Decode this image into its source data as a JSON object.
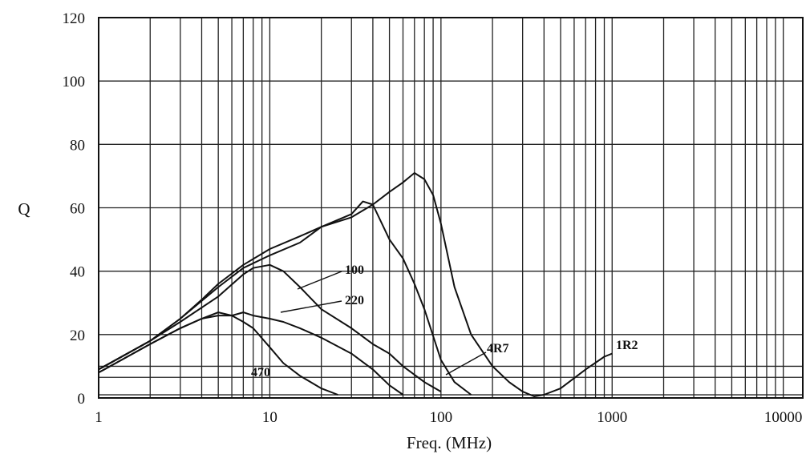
{
  "chart_data": {
    "type": "line",
    "title": "",
    "xlabel": "Freq. (MHz)",
    "ylabel": "Q",
    "x_scale": "log",
    "xlim": [
      1,
      13000
    ],
    "ylim": [
      0,
      120
    ],
    "grid": true,
    "x_tick_labels": [
      "1",
      "10",
      "100",
      "1000",
      "10000"
    ],
    "x_tick_values": [
      1,
      10,
      100,
      1000,
      10000
    ],
    "y_tick_labels": [
      "0",
      "20",
      "40",
      "60",
      "80",
      "100",
      "120"
    ],
    "y_tick_values": [
      0,
      20,
      40,
      60,
      80,
      100,
      120
    ],
    "extra_y_gridlines": [
      1,
      6.5,
      10
    ],
    "series": [
      {
        "name": "1R2",
        "x": [
          1,
          2,
          3,
          4,
          5,
          7,
          10,
          15,
          20,
          30,
          40,
          50,
          60,
          70,
          80,
          90,
          100,
          120,
          150,
          200,
          250,
          300,
          350,
          400,
          500,
          700,
          900,
          1000
        ],
        "y": [
          9,
          18,
          25,
          31,
          36,
          42,
          47,
          51,
          54,
          57,
          61,
          65,
          68,
          71,
          69,
          64,
          55,
          35,
          20,
          10,
          5,
          2,
          0.5,
          1,
          3,
          9,
          13,
          14
        ]
      },
      {
        "name": "4R7",
        "x": [
          1,
          2,
          3,
          5,
          7,
          10,
          15,
          20,
          30,
          35,
          40,
          50,
          60,
          70,
          80,
          100,
          120,
          150
        ],
        "y": [
          9,
          18,
          25,
          35,
          41,
          45,
          49,
          54,
          58,
          62,
          61,
          50,
          44,
          36,
          28,
          12,
          5,
          1
        ]
      },
      {
        "name": "100",
        "x": [
          1,
          2,
          3,
          5,
          7,
          8,
          10,
          12,
          15,
          20,
          30,
          40,
          50,
          60,
          80,
          100
        ],
        "y": [
          9,
          18,
          24,
          32,
          39,
          41,
          42,
          40,
          35,
          28,
          22,
          17,
          14,
          10,
          5,
          2
        ]
      },
      {
        "name": "220",
        "x": [
          1,
          2,
          3,
          4,
          5,
          6,
          7,
          8,
          10,
          12,
          15,
          20,
          30,
          40,
          50,
          60
        ],
        "y": [
          8,
          17,
          22,
          25,
          26,
          26,
          27,
          26,
          25,
          24,
          22,
          19,
          14,
          9,
          4,
          1
        ]
      },
      {
        "name": "470",
        "x": [
          1,
          2,
          3,
          4,
          5,
          6,
          7,
          8,
          10,
          12,
          15,
          20,
          25
        ],
        "y": [
          8,
          17,
          22,
          25,
          27,
          26,
          24,
          22,
          16,
          11,
          7,
          3,
          1
        ]
      }
    ]
  }
}
